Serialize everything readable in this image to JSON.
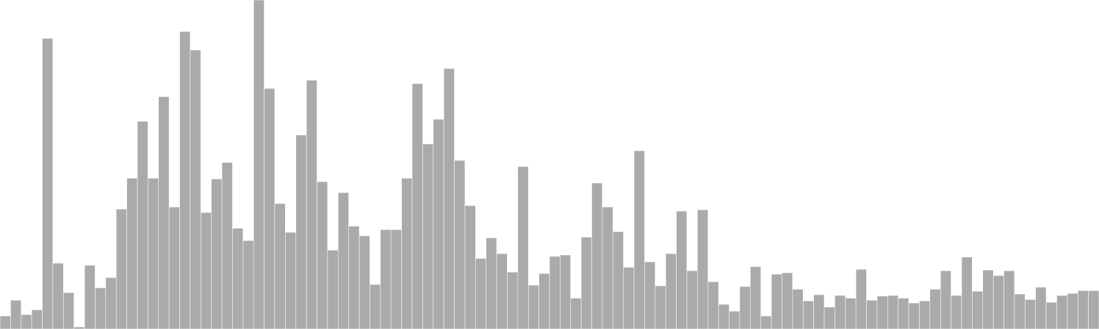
{
  "chart_data": {
    "type": "bar",
    "bar_color": "#aaaaaa",
    "bar_edge_color": "#ffffff",
    "grid": false,
    "legend": "none",
    "ylim": [
      0,
      480
    ],
    "values": [
      19,
      42,
      21,
      28,
      424,
      96,
      53,
      3,
      93,
      60,
      75,
      175,
      220,
      303,
      220,
      339,
      178,
      434,
      407,
      170,
      219,
      243,
      147,
      129,
      480,
      351,
      183,
      141,
      283,
      363,
      215,
      115,
      199,
      150,
      136,
      65,
      145,
      145,
      220,
      358,
      270,
      306,
      380,
      246,
      180,
      103,
      133,
      110,
      83,
      237,
      64,
      81,
      106,
      108,
      45,
      134,
      213,
      178,
      142,
      90,
      260,
      98,
      63,
      110,
      172,
      85,
      174,
      69,
      36,
      26,
      62,
      91,
      19,
      80,
      82,
      58,
      41,
      50,
      32,
      49,
      45,
      87,
      42,
      48,
      49,
      45,
      38,
      41,
      58,
      85,
      49,
      105,
      55,
      86,
      78,
      85,
      51,
      43,
      61,
      39,
      49,
      52,
      56,
      56
    ]
  }
}
